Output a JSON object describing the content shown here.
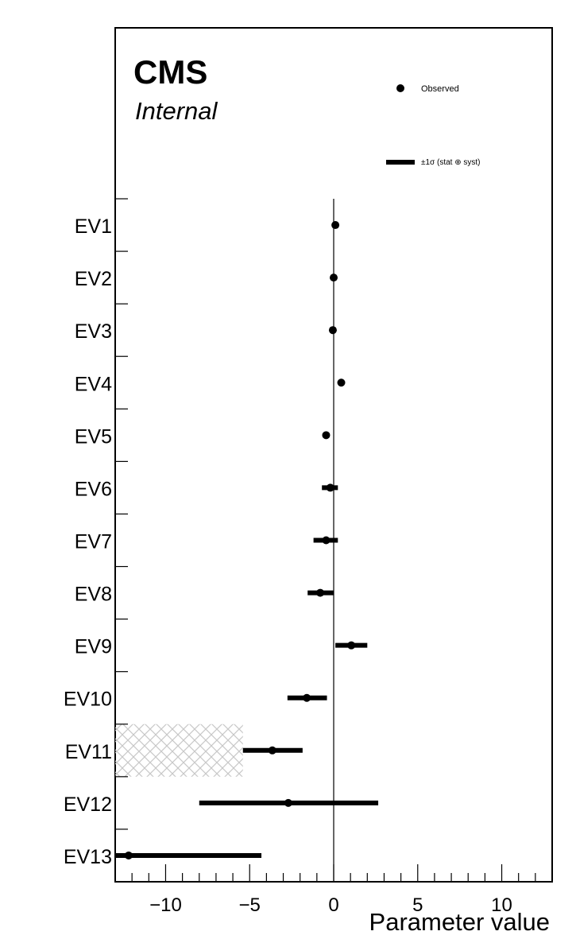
{
  "chart_data": {
    "type": "scatter",
    "orientation": "horizontal",
    "title": "",
    "xlabel": "Parameter value",
    "ylabel": "",
    "xlim": [
      -13,
      13
    ],
    "x_ticks": [
      -10,
      -5,
      0,
      5,
      10
    ],
    "x_tick_labels": [
      "−10",
      "−5",
      "0",
      "5",
      "10"
    ],
    "zero_line": 0,
    "grid": false,
    "legend_placement": "top-right",
    "watermark": {
      "experiment": "CMS",
      "status": "Internal"
    },
    "series": [
      {
        "name": "Observed",
        "marker": "circle",
        "color": "#000000",
        "points": [
          {
            "label": "EV1",
            "value": 0.1,
            "lo": 0.1,
            "hi": 0.1
          },
          {
            "label": "EV2",
            "value": 0.0,
            "lo": 0.0,
            "hi": 0.0
          },
          {
            "label": "EV3",
            "value": -0.05,
            "lo": -0.05,
            "hi": -0.05
          },
          {
            "label": "EV4",
            "value": 0.45,
            "lo": 0.45,
            "hi": 0.45
          },
          {
            "label": "EV5",
            "value": -0.45,
            "lo": -0.45,
            "hi": -0.45
          },
          {
            "label": "EV6",
            "value": -0.2,
            "lo": -0.7,
            "hi": 0.25
          },
          {
            "label": "EV7",
            "value": -0.45,
            "lo": -1.2,
            "hi": 0.25
          },
          {
            "label": "EV8",
            "value": -0.8,
            "lo": -1.55,
            "hi": 0.0
          },
          {
            "label": "EV9",
            "value": 1.05,
            "lo": 0.1,
            "hi": 2.0
          },
          {
            "label": "EV10",
            "value": -1.6,
            "lo": -2.75,
            "hi": -0.4
          },
          {
            "label": "EV11",
            "value": -3.65,
            "lo": -5.4,
            "hi": -1.85
          },
          {
            "label": "EV12",
            "value": -2.7,
            "lo": -8.0,
            "hi": 2.65
          },
          {
            "label": "EV13",
            "value": -12.2,
            "lo": -13.0,
            "hi": -4.3
          }
        ]
      }
    ],
    "legend": [
      {
        "name": "Observed",
        "style": "marker"
      },
      {
        "name": "±1σ (stat ⊕ syst)",
        "style": "bar"
      }
    ],
    "hatched_band": {
      "row": "EV11",
      "x_from": -13,
      "x_to": -5.4,
      "color": "#c8c8c8"
    }
  }
}
